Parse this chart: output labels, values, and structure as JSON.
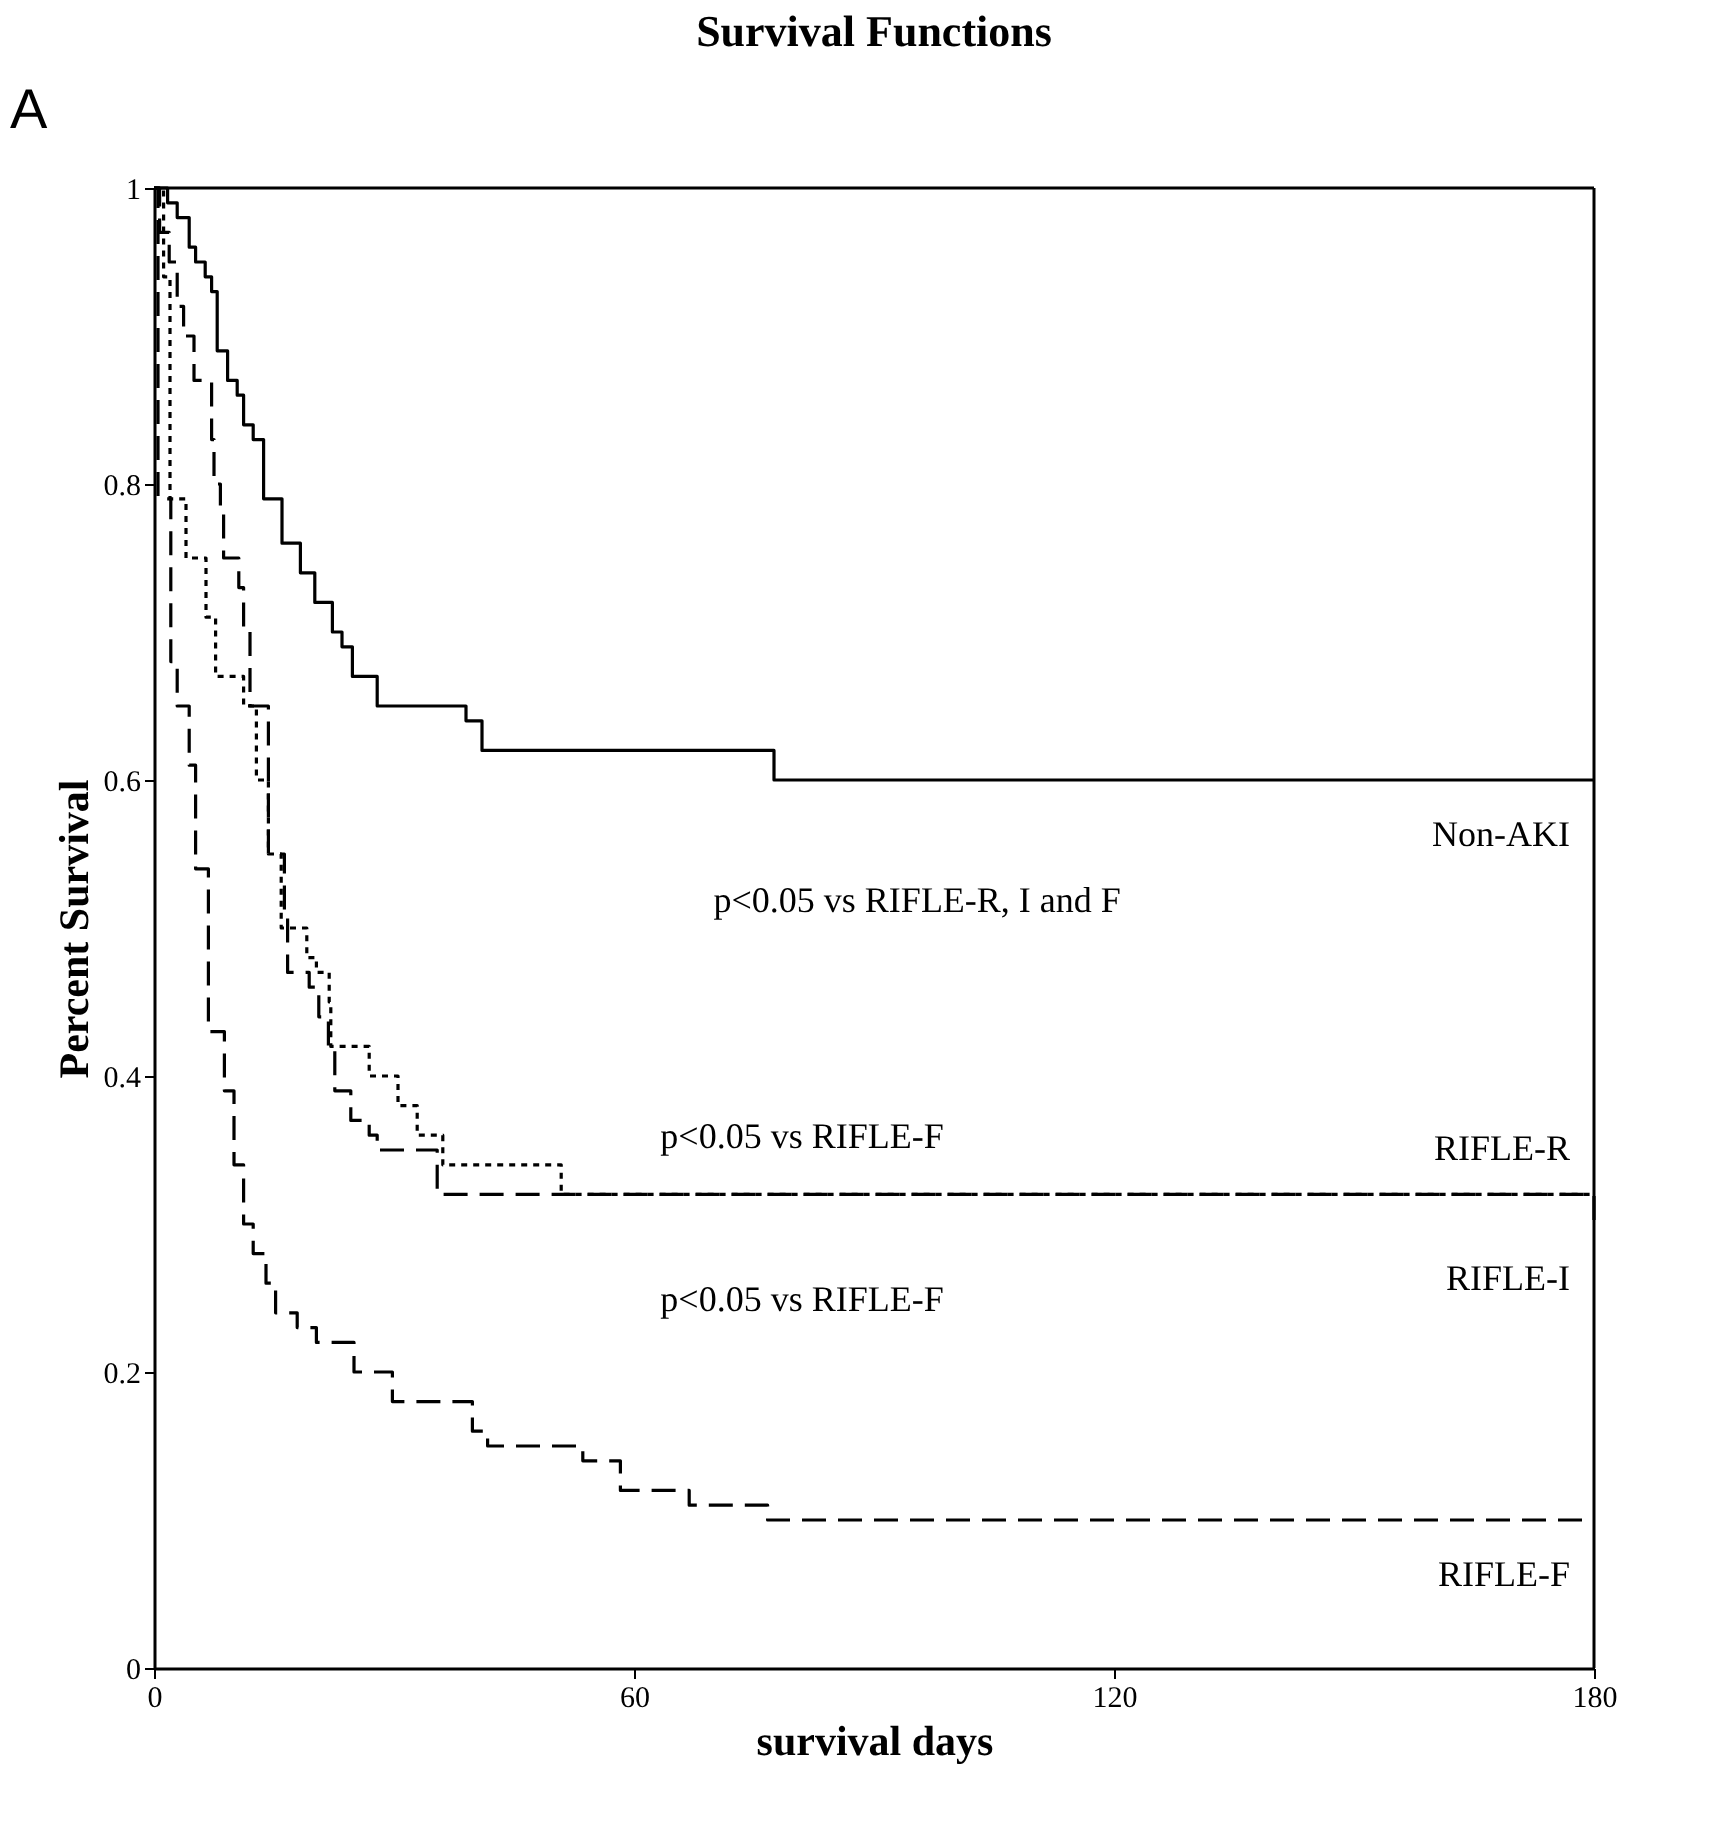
{
  "chart_data": {
    "type": "step",
    "title": "Survival Functions",
    "xlabel": "survival days",
    "ylabel": "Percent Survival",
    "xlim": [
      0,
      180
    ],
    "xticks": [
      0,
      60,
      120,
      180
    ],
    "ylim": [
      0,
      1
    ],
    "yticks": [
      0,
      0.2,
      0.4,
      0.6,
      0.8,
      1
    ],
    "grid": false,
    "series": [
      {
        "name": "Non-AKI",
        "color": "#000000",
        "line_style": "solid",
        "x": [
          0,
          1.7,
          2.9,
          4.4,
          5.2,
          6.4,
          7.2,
          7.9,
          9.2,
          10.4,
          11.2,
          12.4,
          13.7,
          16,
          18.3,
          20.1,
          22.3,
          23.5,
          24.8,
          27.9,
          39,
          41,
          53.3,
          77.5,
          180
        ],
        "values": [
          1,
          0.99,
          0.98,
          0.96,
          0.95,
          0.94,
          0.93,
          0.89,
          0.87,
          0.86,
          0.84,
          0.83,
          0.79,
          0.76,
          0.74,
          0.72,
          0.7,
          0.69,
          0.67,
          0.65,
          0.64,
          0.62,
          0.62,
          0.6,
          0.6
        ]
      },
      {
        "name": "RIFLE-R",
        "color": "#000000",
        "line_style": "dotted",
        "x": [
          0,
          1.2,
          2,
          4,
          6.5,
          7.7,
          11.2,
          12.8,
          14.3,
          15.9,
          19.1,
          20.3,
          21.9,
          22.1,
          26.9,
          30.5,
          32.9,
          36.1,
          50.9,
          180
        ],
        "values": [
          1,
          0.94,
          0.79,
          0.75,
          0.71,
          0.67,
          0.65,
          0.6,
          0.55,
          0.5,
          0.48,
          0.47,
          0.45,
          0.42,
          0.4,
          0.38,
          0.36,
          0.34,
          0.32,
          0.32
        ]
      },
      {
        "name": "RIFLE-I",
        "color": "#000000",
        "line_style": "dashed",
        "x": [
          0,
          0.7,
          1.9,
          2.9,
          3.7,
          5,
          7.2,
          7.5,
          8.3,
          8.7,
          10.6,
          11.2,
          12,
          14.3,
          16.3,
          16.7,
          19.4,
          20.6,
          21.8,
          22.6,
          24.6,
          26.9,
          27.9,
          35.4,
          180
        ],
        "values": [
          1,
          0.97,
          0.95,
          0.92,
          0.9,
          0.87,
          0.83,
          0.8,
          0.78,
          0.75,
          0.73,
          0.7,
          0.65,
          0.55,
          0.51,
          0.47,
          0.46,
          0.44,
          0.42,
          0.39,
          0.37,
          0.36,
          0.35,
          0.32,
          0.3
        ]
      },
      {
        "name": "RIFLE-F",
        "color": "#000000",
        "line_style": "dashed",
        "x": [
          0,
          0.5,
          2.1,
          2.9,
          4.4,
          5.2,
          6.8,
          8.8,
          10,
          11.2,
          12.4,
          14,
          15.2,
          17.9,
          20.3,
          25,
          29.8,
          39.8,
          41.7,
          53.6,
          58.3,
          66.9,
          76.7,
          180
        ],
        "values": [
          1,
          0.79,
          0.68,
          0.65,
          0.61,
          0.54,
          0.43,
          0.39,
          0.34,
          0.3,
          0.28,
          0.26,
          0.24,
          0.23,
          0.22,
          0.2,
          0.18,
          0.16,
          0.15,
          0.14,
          0.12,
          0.11,
          0.1,
          0.1
        ]
      }
    ],
    "annotations": [
      "A",
      "p<0.05 vs RIFLE-R, I and F",
      "p<0.05 vs RIFLE-F",
      "p<0.05 vs RIFLE-F"
    ]
  }
}
